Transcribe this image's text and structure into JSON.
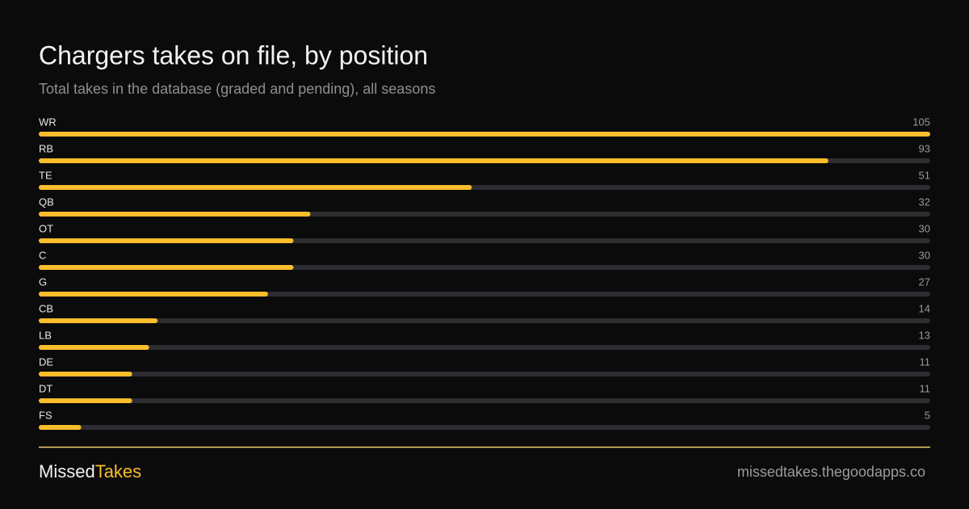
{
  "chart_data": {
    "type": "bar",
    "orientation": "horizontal",
    "title": "Chargers takes on file, by position",
    "subtitle": "Total takes in the database (graded and pending), all seasons",
    "categories": [
      "WR",
      "RB",
      "TE",
      "QB",
      "OT",
      "C",
      "G",
      "CB",
      "LB",
      "DE",
      "DT",
      "FS"
    ],
    "values": [
      105,
      93,
      51,
      32,
      30,
      30,
      27,
      14,
      13,
      11,
      11,
      5
    ],
    "color": "#fbbd2c",
    "track_color": "#2c2c31",
    "xlim": [
      0,
      105
    ]
  },
  "footer": {
    "brand_first": "Missed",
    "brand_second": "Takes",
    "url": "missedtakes.thegoodapps.co"
  }
}
